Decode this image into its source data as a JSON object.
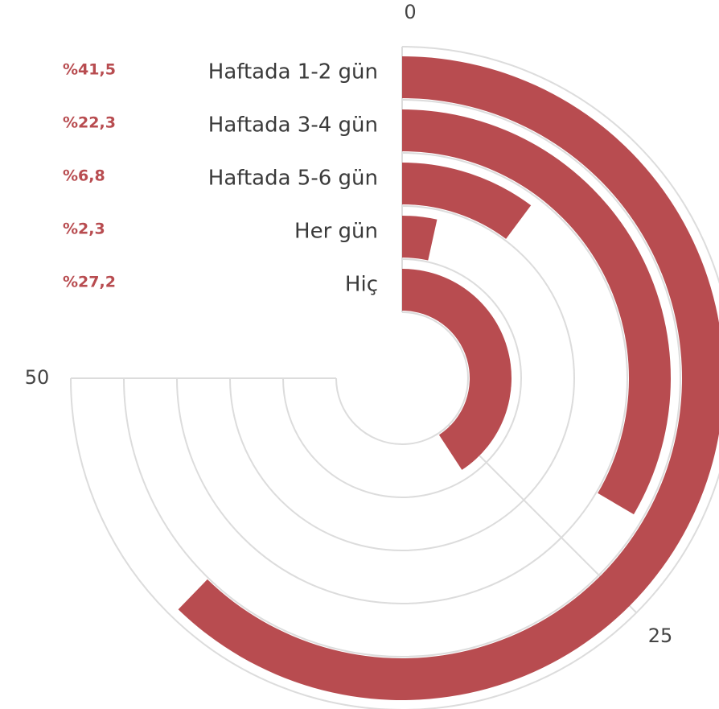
{
  "chart_data": {
    "type": "radial_bar",
    "categories": [
      "Haftada 1-2 gün",
      "Haftada 3-4 gün",
      "Haftada 5-6 gün",
      "Her gün",
      "Hiç"
    ],
    "values": [
      41.5,
      22.3,
      6.8,
      2.3,
      27.2
    ],
    "value_labels": [
      "%41,5",
      "%22,3",
      "%6,8",
      "%2,3",
      "%27,2"
    ],
    "color": "#b84c50",
    "xlim": [
      0,
      50
    ],
    "xticks": [
      0,
      25,
      50
    ],
    "grid": true
  }
}
